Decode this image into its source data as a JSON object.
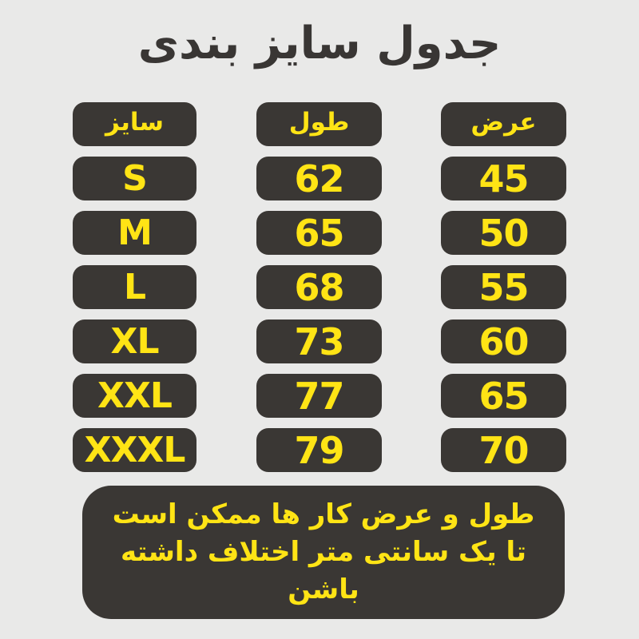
{
  "title": "جدول سایز بندی",
  "colors": {
    "background": "#e9e9e8",
    "pill_background": "#3a3734",
    "text_yellow": "#ffe415",
    "title_text": "#393634"
  },
  "table": {
    "headers": {
      "size": "سایز",
      "length": "طول",
      "width": "عرض"
    },
    "rows": [
      {
        "size": "S",
        "length": "62",
        "width": "45"
      },
      {
        "size": "M",
        "length": "65",
        "width": "50"
      },
      {
        "size": "L",
        "length": "68",
        "width": "55"
      },
      {
        "size": "XL",
        "length": "73",
        "width": "60"
      },
      {
        "size": "XXL",
        "length": "77",
        "width": "65"
      },
      {
        "size": "XXXL",
        "length": "79",
        "width": "70"
      }
    ]
  },
  "note": {
    "line1": "طول و عرض کار ها ممکن است",
    "line2": "تا یک سانتی متر اختلاف داشته باشن"
  },
  "chart_data": {
    "type": "table",
    "title": "جدول سایز بندی",
    "columns": [
      "سایز",
      "طول",
      "عرض"
    ],
    "rows": [
      [
        "S",
        62,
        45
      ],
      [
        "M",
        65,
        50
      ],
      [
        "L",
        68,
        55
      ],
      [
        "XL",
        73,
        60
      ],
      [
        "XXL",
        77,
        65
      ],
      [
        "XXXL",
        79,
        70
      ]
    ],
    "note": "طول و عرض کار ها ممکن است تا یک سانتی متر اختلاف داشته باشن"
  }
}
